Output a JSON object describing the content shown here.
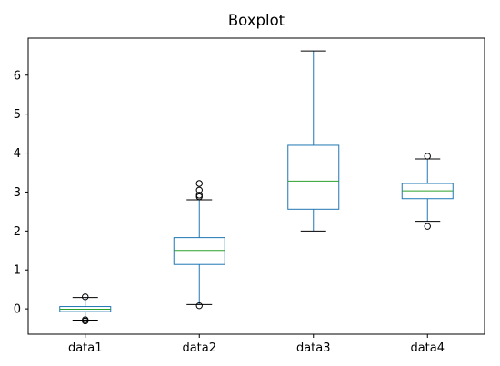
{
  "chart_data": {
    "type": "box",
    "title": "Boxplot",
    "xlabel": "",
    "ylabel": "",
    "ylim": [
      -0.65,
      6.95
    ],
    "yticks": [
      0,
      1,
      2,
      3,
      4,
      5,
      6
    ],
    "categories": [
      "data1",
      "data2",
      "data3",
      "data4"
    ],
    "boxes": [
      {
        "name": "data1",
        "whislo": -0.29,
        "q1": -0.07,
        "med": -0.01,
        "q3": 0.06,
        "whishi": 0.29,
        "fliers": [
          0.31,
          -0.28,
          -0.31
        ]
      },
      {
        "name": "data2",
        "whislo": 0.11,
        "q1": 1.14,
        "med": 1.5,
        "q3": 1.83,
        "whishi": 2.8,
        "fliers": [
          0.08,
          2.88,
          2.92,
          3.05,
          3.22
        ]
      },
      {
        "name": "data3",
        "whislo": 2.0,
        "q1": 2.56,
        "med": 3.28,
        "q3": 4.2,
        "whishi": 6.62,
        "fliers": []
      },
      {
        "name": "data4",
        "whislo": 2.25,
        "q1": 2.83,
        "med": 3.03,
        "q3": 3.22,
        "whishi": 3.85,
        "fliers": [
          2.12,
          3.92
        ]
      }
    ],
    "grid": false,
    "colors": {
      "box": "#1f77b4",
      "median": "#2ca02c",
      "whisker": "#000000",
      "flier": "#000000",
      "axes": "#000000"
    }
  }
}
